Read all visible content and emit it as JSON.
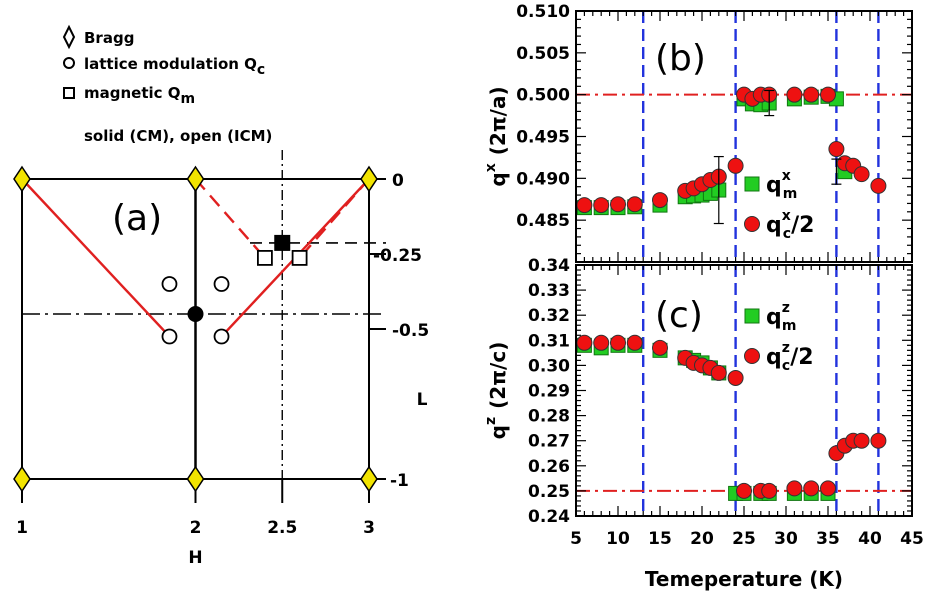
{
  "legend_a": {
    "bragg": "Bragg",
    "lattice": "lattice modulation Q",
    "lattice_sub": "c",
    "magnetic": "magnetic Q",
    "magnetic_sub": "m",
    "note": "solid (CM), open (ICM)"
  },
  "chart_data": [
    {
      "id": "a",
      "type": "scatter",
      "label": "(a)",
      "xlabel": "H",
      "ylabel": "L",
      "x_ticks": [
        "1",
        "2",
        "2.5",
        "3"
      ],
      "y_ticks": [
        "0",
        "-0.25",
        "-0.5",
        "-1"
      ],
      "xlim": [
        1,
        3
      ],
      "ylim": [
        -1,
        0
      ],
      "bragg": [
        [
          1,
          0
        ],
        [
          2,
          0
        ],
        [
          3,
          0
        ],
        [
          1,
          -1
        ],
        [
          2,
          -1
        ],
        [
          3,
          -1
        ]
      ],
      "lattice_open": [
        [
          1.85,
          -0.35
        ],
        [
          2.15,
          -0.35
        ],
        [
          1.85,
          -0.525
        ],
        [
          2.15,
          -0.525
        ]
      ],
      "lattice_solid": [
        [
          2,
          -0.45
        ]
      ],
      "magnetic_open": [
        [
          2.4,
          -0.263
        ],
        [
          2.6,
          -0.263
        ]
      ],
      "magnetic_solid": [
        [
          2.5,
          -0.213
        ]
      ],
      "red_solid": [
        [
          [
            1,
            0
          ],
          [
            1.85,
            -0.525
          ]
        ],
        [
          [
            3,
            0
          ],
          [
            2.15,
            -0.525
          ]
        ]
      ],
      "red_dashed": [
        [
          [
            2,
            0
          ],
          [
            2.4,
            -0.263
          ]
        ],
        [
          [
            3,
            0
          ],
          [
            2.6,
            -0.263
          ]
        ]
      ],
      "guide_h_dashed": -0.213,
      "guide_h_dashdot": -0.45,
      "guide_v_dashdot": 2.5
    },
    {
      "id": "b",
      "type": "scatter",
      "label": "(b)",
      "ylabel": "q",
      "ylabel_sup": "x",
      "ylabel_unit": "(2π/a)",
      "ylim": [
        0.48,
        0.51
      ],
      "xlim": [
        5,
        45
      ],
      "y_ticks": [
        "0.485",
        "0.490",
        "0.495",
        "0.500",
        "0.505",
        "0.510"
      ],
      "ref_line": 0.5,
      "vlines": [
        13,
        24,
        36,
        41
      ],
      "series": [
        {
          "name": "q",
          "sup": "x",
          "sub": "m",
          "marker": "square",
          "color": "#22cc22",
          "x": [
            6,
            8,
            10,
            12,
            15,
            18,
            19,
            20,
            21,
            22,
            25,
            26,
            27,
            28,
            31,
            33,
            35,
            36,
            37
          ],
          "y": [
            0.4865,
            0.4865,
            0.4865,
            0.4866,
            0.4868,
            0.4878,
            0.4879,
            0.488,
            0.4882,
            0.4886,
            0.4995,
            0.4989,
            0.4988,
            0.499,
            0.4995,
            0.4997,
            0.4998,
            0.4995,
            0.4908
          ]
        },
        {
          "name": "q",
          "sup": "x",
          "sub": "c",
          "suffix": "/2",
          "marker": "circle",
          "color": "#ee1111",
          "x": [
            6,
            8,
            10,
            12,
            15,
            18,
            19,
            20,
            21,
            22,
            24,
            25,
            26,
            27,
            28,
            31,
            33,
            35,
            36,
            37,
            38,
            39,
            41
          ],
          "y": [
            0.4868,
            0.4868,
            0.4869,
            0.4869,
            0.4874,
            0.4885,
            0.4888,
            0.4893,
            0.4898,
            0.4902,
            0.4915,
            0.5,
            0.4995,
            0.5,
            0.5,
            0.5,
            0.5,
            0.5,
            0.4935,
            0.4918,
            0.4915,
            0.4905,
            0.4891
          ]
        }
      ]
    },
    {
      "id": "c",
      "type": "scatter",
      "label": "(c)",
      "xlabel": "Temeperature (K)",
      "ylabel": "q",
      "ylabel_sup": "z",
      "ylabel_unit": "(2π/c)",
      "xlim": [
        5,
        45
      ],
      "ylim": [
        0.24,
        0.34
      ],
      "x_ticks": [
        "5",
        "10",
        "15",
        "20",
        "25",
        "30",
        "35",
        "40",
        "45"
      ],
      "y_ticks": [
        "0.24",
        "0.25",
        "0.26",
        "0.27",
        "0.28",
        "0.29",
        "0.30",
        "0.31",
        "0.32",
        "0.33",
        "0.34"
      ],
      "ref_line": 0.25,
      "vlines": [
        13,
        24,
        36,
        41
      ],
      "series": [
        {
          "name": "q",
          "sup": "z",
          "sub": "m",
          "marker": "square",
          "color": "#22cc22",
          "x": [
            6,
            8,
            10,
            12,
            15,
            18,
            19,
            20,
            21,
            22,
            24,
            25,
            27,
            28,
            31,
            33,
            35
          ],
          "y": [
            0.308,
            0.307,
            0.308,
            0.308,
            0.306,
            0.303,
            0.302,
            0.301,
            0.299,
            0.297,
            0.249,
            0.249,
            0.249,
            0.249,
            0.249,
            0.249,
            0.249
          ]
        },
        {
          "name": "q",
          "sup": "z",
          "sub": "c",
          "suffix": "/2",
          "marker": "circle",
          "color": "#ee1111",
          "x": [
            6,
            8,
            10,
            12,
            15,
            18,
            19,
            20,
            21,
            22,
            24,
            25,
            27,
            28,
            31,
            33,
            35,
            36,
            37,
            38,
            39,
            41
          ],
          "y": [
            0.309,
            0.309,
            0.309,
            0.309,
            0.307,
            0.303,
            0.301,
            0.3,
            0.299,
            0.297,
            0.295,
            0.25,
            0.25,
            0.25,
            0.251,
            0.251,
            0.251,
            0.265,
            0.268,
            0.27,
            0.27,
            0.27
          ]
        }
      ]
    }
  ]
}
